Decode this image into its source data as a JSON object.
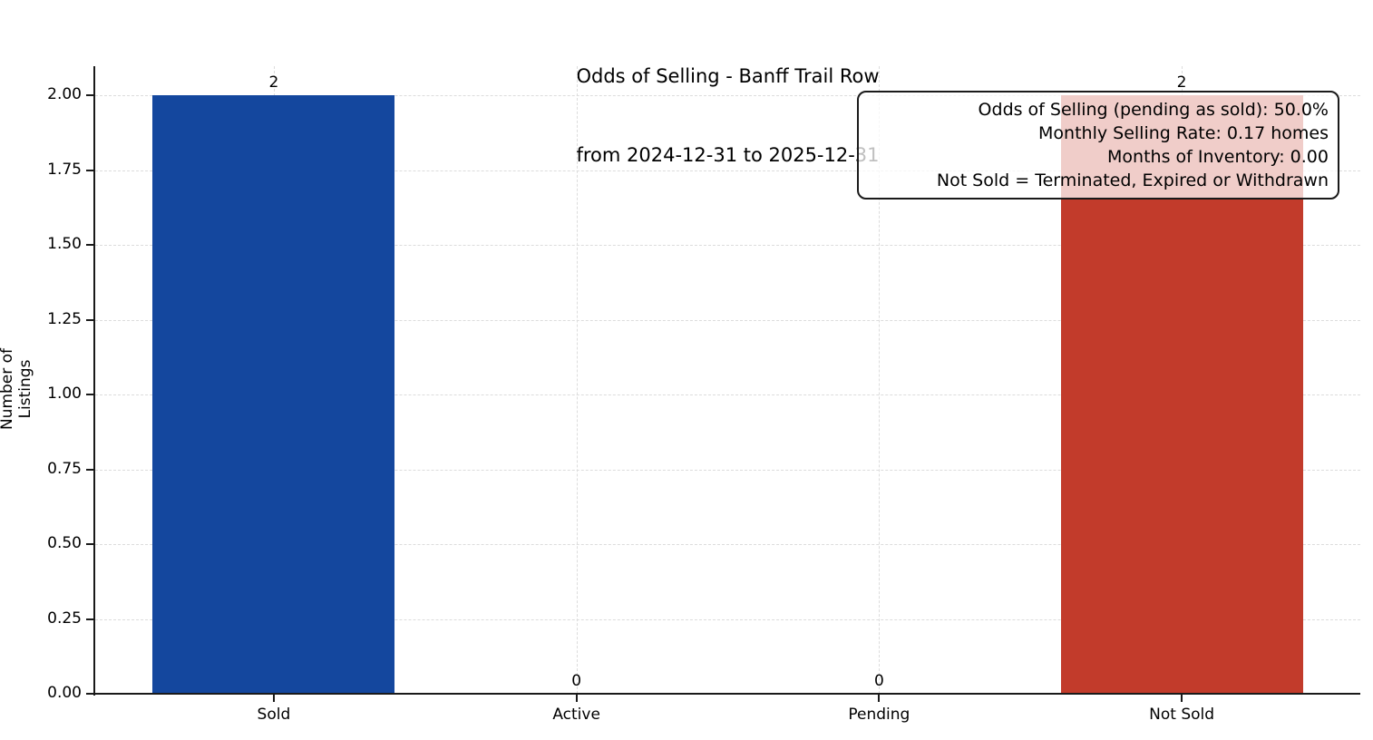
{
  "chart_data": {
    "type": "bar",
    "title": "Odds of Selling - Banff Trail Row",
    "subtitle": "from 2024-12-31 to 2025-12-31",
    "ylabel": "Number of Listings",
    "xlabel": "",
    "categories": [
      "Sold",
      "Active",
      "Pending",
      "Not Sold"
    ],
    "values": [
      2,
      0,
      0,
      2
    ],
    "bar_value_labels": [
      "2",
      "0",
      "0",
      "2"
    ],
    "bar_colors": [
      "#14479e",
      "#14479e",
      "#14479e",
      "#c23b2b"
    ],
    "ylim": [
      0,
      2
    ],
    "yticks": [
      0.0,
      0.25,
      0.5,
      0.75,
      1.0,
      1.25,
      1.5,
      1.75,
      2.0
    ],
    "ytick_labels": [
      "0.00",
      "0.25",
      "0.50",
      "0.75",
      "1.00",
      "1.25",
      "1.50",
      "1.75",
      "2.00"
    ],
    "grid": true,
    "legend_position": "none",
    "annotation_lines": [
      "Odds of Selling (pending as sold): 50.0%",
      "Monthly Selling Rate: 0.17 homes",
      "Months of Inventory: 0.00",
      "Not Sold = Terminated, Expired or Withdrawn"
    ],
    "colors": {
      "sold_bar": "#14479e",
      "not_sold_bar": "#c23b2b",
      "grid": "#dcdcdc",
      "axis": "#1a1a1a",
      "annotation_bg": "rgba(255,255,255,0.75)"
    }
  }
}
